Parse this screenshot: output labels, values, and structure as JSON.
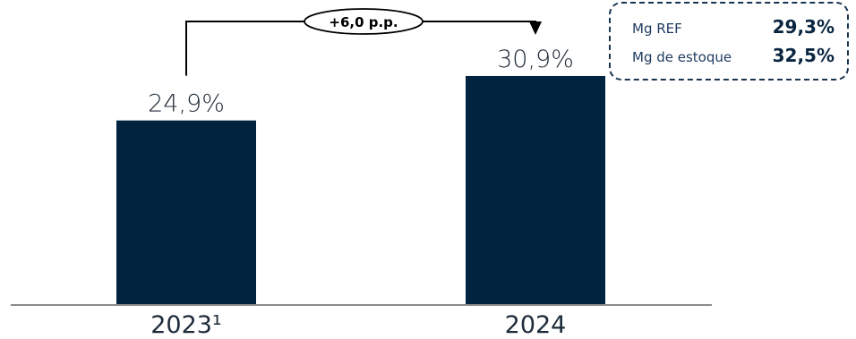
{
  "colors": {
    "bar": "#002440",
    "text": "#1e2b38",
    "axis": "#8c8c8c",
    "box_border": "#1a3550",
    "box_value": "#0a2540"
  },
  "chart_data": {
    "type": "bar",
    "categories": [
      "2023¹",
      "2024"
    ],
    "values": [
      24.9,
      30.9
    ],
    "value_labels": [
      "24,9%",
      "30,9%"
    ],
    "ylim": [
      0,
      35
    ],
    "grid": false,
    "annotations": {
      "delta": "+6,0 p.p."
    }
  },
  "info_box": {
    "rows": [
      {
        "label": "Mg REF",
        "value": "29,3%"
      },
      {
        "label": "Mg de estoque",
        "value": "32,5%"
      }
    ]
  }
}
